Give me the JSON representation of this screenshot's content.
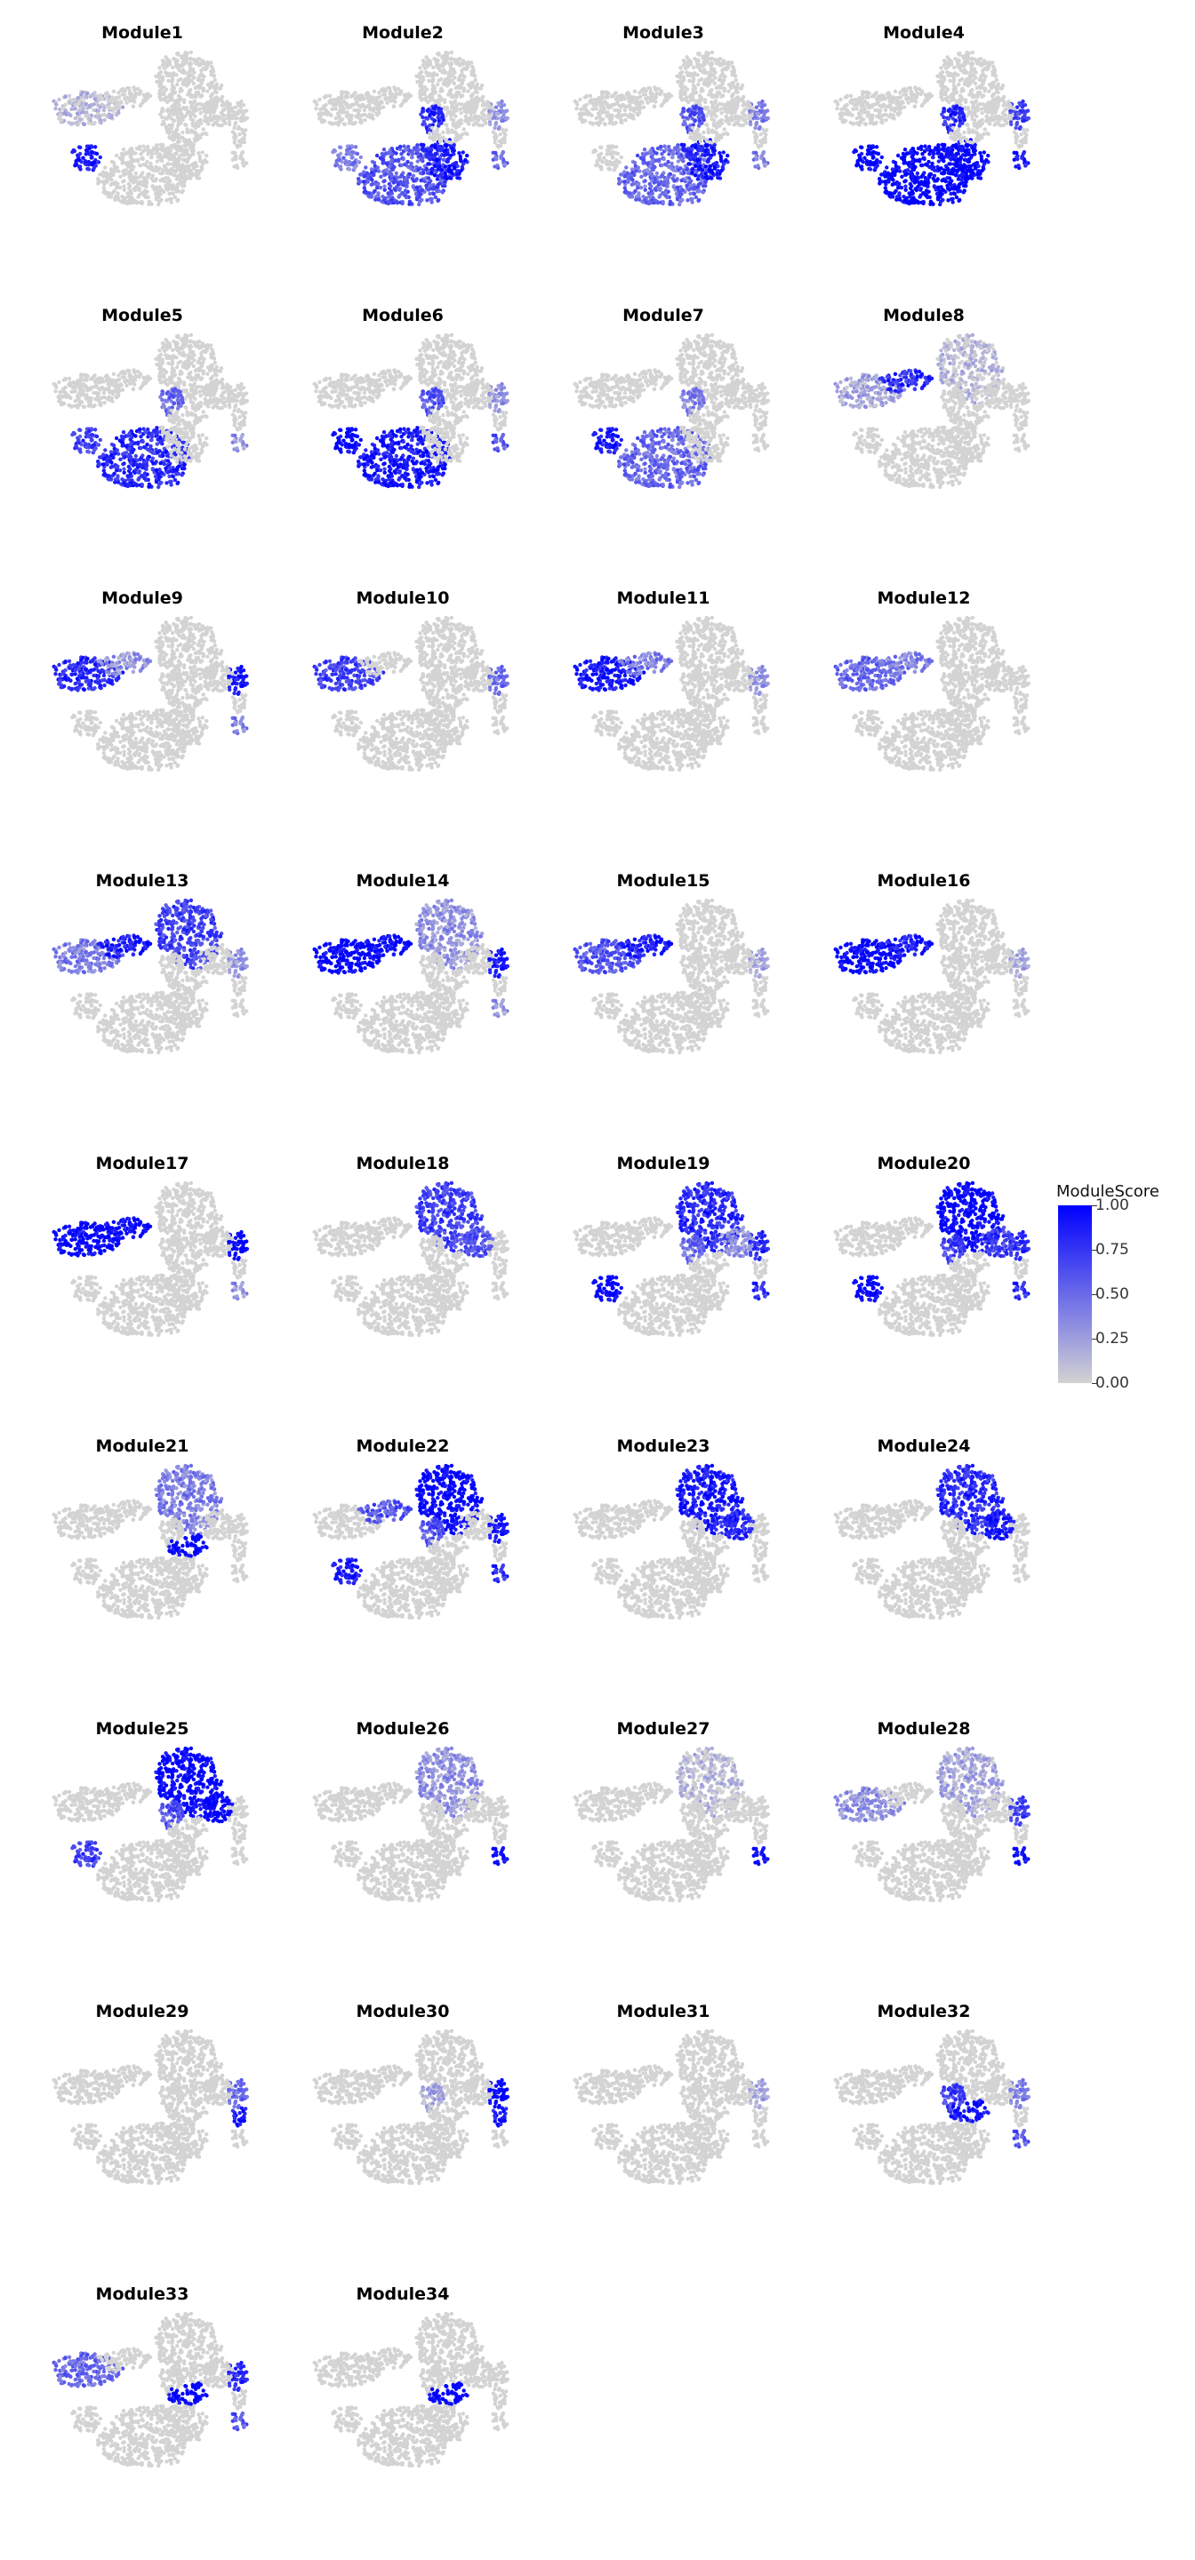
{
  "chart_data": {
    "type": "scatter",
    "title": "",
    "xlabel": "",
    "ylabel": "",
    "grid": false,
    "legend": {
      "title": "ModuleScore",
      "placement": "right",
      "ticks": [
        "1.00",
        "0.75",
        "0.50",
        "0.25",
        "0.00"
      ],
      "low_color": "#d3d3d3",
      "high_color": "#0000ff"
    },
    "panels": [
      {
        "name": "Module1",
        "scores": {
          "left_ring": 0.1,
          "left_lower": 0.9,
          "lower_blob": 0.0
        }
      },
      {
        "name": "Module2",
        "scores": {
          "left_lower": 0.4,
          "lower_blob": 0.6,
          "lower_right": 0.9,
          "mid_spine": 0.8,
          "right_top": 0.3,
          "right_bottom": 0.5
        }
      },
      {
        "name": "Module3",
        "scores": {
          "lower_blob": 0.5,
          "lower_right": 0.9,
          "mid_spine": 0.6,
          "right_top": 0.4,
          "right_bottom": 0.4
        }
      },
      {
        "name": "Module4",
        "scores": {
          "left_lower": 1.0,
          "lower_blob": 1.0,
          "lower_right": 1.0,
          "mid_spine": 0.8,
          "right_top": 0.7,
          "right_bottom": 0.9
        }
      },
      {
        "name": "Module5",
        "scores": {
          "left_lower": 0.7,
          "lower_blob": 0.8,
          "mid_spine": 0.5,
          "right_bottom": 0.3
        }
      },
      {
        "name": "Module6",
        "scores": {
          "left_lower": 1.0,
          "lower_blob": 0.9,
          "mid_spine": 0.6,
          "right_top": 0.3,
          "right_bottom": 0.6
        }
      },
      {
        "name": "Module7",
        "scores": {
          "left_lower": 0.9,
          "lower_blob": 0.5,
          "mid_spine": 0.4
        }
      },
      {
        "name": "Module8",
        "scores": {
          "left_ring": 0.2,
          "left_arm": 0.8,
          "top_cluster": 0.1
        }
      },
      {
        "name": "Module9",
        "scores": {
          "left_ring": 0.8,
          "left_arm": 0.3,
          "right_top": 0.9,
          "right_bottom": 0.4
        }
      },
      {
        "name": "Module10",
        "scores": {
          "left_ring": 0.7,
          "right_top": 0.5
        }
      },
      {
        "name": "Module11",
        "scores": {
          "left_ring": 0.9,
          "left_arm": 0.4,
          "right_top": 0.3
        }
      },
      {
        "name": "Module12",
        "scores": {
          "left_ring": 0.5,
          "left_arm": 0.4
        }
      },
      {
        "name": "Module13",
        "scores": {
          "top_cluster": 0.7,
          "left_ring": 0.4,
          "left_arm": 0.9,
          "right_top": 0.3
        }
      },
      {
        "name": "Module14",
        "scores": {
          "left_ring": 1.0,
          "left_arm": 1.0,
          "top_cluster": 0.3,
          "right_top": 0.9,
          "right_bottom": 0.3
        }
      },
      {
        "name": "Module15",
        "scores": {
          "left_ring": 0.6,
          "left_arm": 0.9,
          "right_top": 0.2
        }
      },
      {
        "name": "Module16",
        "scores": {
          "left_ring": 1.0,
          "left_arm": 0.9,
          "right_top": 0.2
        }
      },
      {
        "name": "Module17",
        "scores": {
          "left_ring": 1.0,
          "left_arm": 1.0,
          "right_top": 1.0,
          "right_bottom": 0.3
        }
      },
      {
        "name": "Module18",
        "scores": {
          "top_cluster": 0.7,
          "top_right": 0.6
        }
      },
      {
        "name": "Module19",
        "scores": {
          "top_cluster": 0.8,
          "top_right": 0.3,
          "left_lower": 1.0,
          "mid_spine": 0.5,
          "right_top": 0.8,
          "right_bottom": 0.8
        }
      },
      {
        "name": "Module20",
        "scores": {
          "top_cluster": 1.0,
          "top_right": 0.7,
          "left_lower": 1.0,
          "mid_spine": 0.7,
          "right_top": 0.8,
          "right_bottom": 0.8
        }
      },
      {
        "name": "Module21",
        "scores": {
          "top_cluster": 0.4,
          "mid_right": 1.0
        }
      },
      {
        "name": "Module22",
        "scores": {
          "top_cluster": 1.0,
          "left_lower": 0.9,
          "left_arm": 0.6,
          "right_top": 0.9,
          "right_bottom": 0.8,
          "mid_spine": 0.6
        }
      },
      {
        "name": "Module23",
        "scores": {
          "top_cluster": 0.9,
          "top_right": 0.8
        }
      },
      {
        "name": "Module24",
        "scores": {
          "top_cluster": 0.8,
          "top_right": 0.9
        }
      },
      {
        "name": "Module25",
        "scores": {
          "top_cluster": 1.0,
          "top_right": 1.0,
          "left_lower": 0.7,
          "mid_spine": 0.6
        }
      },
      {
        "name": "Module26",
        "scores": {
          "top_cluster": 0.3,
          "right_bottom": 1.0
        }
      },
      {
        "name": "Module27",
        "scores": {
          "top_cluster": 0.1,
          "right_bottom": 1.0
        }
      },
      {
        "name": "Module28",
        "scores": {
          "left_ring": 0.3,
          "top_cluster": 0.2,
          "right_top": 0.7,
          "right_bottom": 1.0
        }
      },
      {
        "name": "Module29",
        "scores": {
          "right_top": 0.5,
          "right_mid": 0.9
        }
      },
      {
        "name": "Module30",
        "scores": {
          "right_top": 1.0,
          "right_mid": 0.9,
          "mid_spine": 0.2
        }
      },
      {
        "name": "Module31",
        "scores": {
          "right_top": 0.2
        }
      },
      {
        "name": "Module32",
        "scores": {
          "mid_right": 0.9,
          "mid_spine": 0.7,
          "right_top": 0.4,
          "right_bottom": 0.6
        }
      },
      {
        "name": "Module33",
        "scores": {
          "mid_right": 1.0,
          "left_ring": 0.5,
          "right_top": 0.8,
          "right_bottom": 0.6
        }
      },
      {
        "name": "Module34",
        "scores": {
          "mid_right": 1.0
        }
      }
    ]
  }
}
